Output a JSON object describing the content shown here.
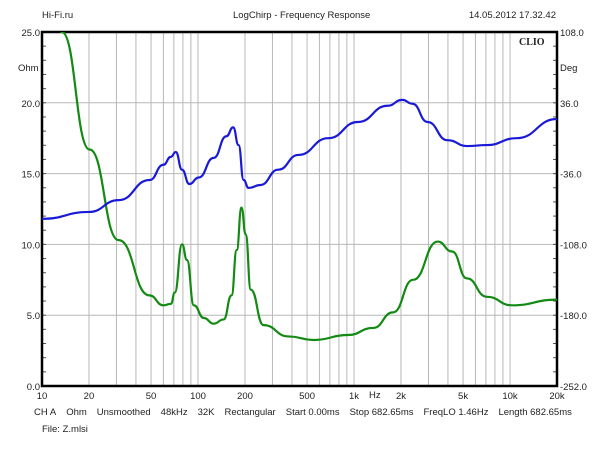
{
  "header": {
    "left": "Hi-Fi.ru",
    "center": "LogChirp - Frequency Response",
    "right": "14.05.2012 17.32.42"
  },
  "brand": "CLIO",
  "footer": {
    "info": [
      "CH A",
      "Ohm",
      "Unsmoothed",
      "48kHz",
      "32K",
      "Rectangular",
      "Start 0.00ms",
      "Stop 682.65ms",
      "FreqLO 1.46Hz",
      "Length 682.65ms"
    ],
    "file": "File: Z.mlsi"
  },
  "chart_data": {
    "type": "line",
    "title": "LogChirp - Frequency Response",
    "xlabel": "Hz",
    "ylabel": "Ohm",
    "y2label": "Deg",
    "xscale": "log",
    "xlim": [
      10,
      20000
    ],
    "ylim": [
      0,
      25
    ],
    "y2lim": [
      -252,
      108
    ],
    "grid": true,
    "xticks": [
      10,
      20,
      50,
      100,
      200,
      500,
      1000,
      2000,
      5000,
      10000,
      20000
    ],
    "xtick_labels": [
      "10",
      "20",
      "50",
      "100",
      "200",
      "500",
      "1k",
      "2k",
      "5k",
      "10k",
      "20k"
    ],
    "yticks": [
      0,
      5,
      10,
      15,
      20,
      25
    ],
    "ytick_labels": [
      "0.0",
      "5.0",
      "10.0",
      "15.0",
      "20.0",
      "25.0"
    ],
    "y2ticks": [
      -252,
      -180,
      -108,
      -36,
      36,
      108
    ],
    "y2tick_labels": [
      "-252.0",
      "-180.0",
      "-108.0",
      "-36.0",
      "36.0",
      "108.0"
    ],
    "series": [
      {
        "name": "Impedance",
        "axis": "left",
        "color": "#138a13",
        "x": [
          13.4,
          20.2,
          31,
          48.8,
          60,
          67,
          71,
          79,
          85,
          94,
          109,
          126,
          146,
          164,
          177,
          190,
          202,
          218,
          263,
          380,
          550,
          915,
          1325,
          1780,
          2390,
          3440,
          4250,
          5290,
          7100,
          10300,
          20000
        ],
        "y": [
          25,
          16.7,
          10.3,
          6.4,
          5.7,
          5.8,
          6.6,
          10.0,
          8.9,
          5.7,
          4.8,
          4.4,
          4.7,
          6.4,
          9.6,
          12.6,
          10.7,
          6.8,
          4.3,
          3.5,
          3.25,
          3.6,
          4.1,
          5.2,
          7.5,
          10.2,
          9.5,
          7.6,
          6.3,
          5.7,
          6.1
        ]
      },
      {
        "name": "Phase",
        "axis": "right",
        "color": "#1a1ad6",
        "x": [
          10,
          20,
          31,
          49,
          60,
          67,
          72,
          79,
          88,
          101,
          126,
          152,
          168,
          182,
          196,
          211,
          251,
          327,
          440,
          683,
          1060,
          1640,
          2040,
          2370,
          2960,
          3970,
          5300,
          7100,
          11000,
          20000
        ],
        "y": [
          -82,
          -75,
          -63,
          -42.5,
          -27,
          -19,
          -14,
          -32,
          -46.6,
          -40,
          -20,
          2,
          11,
          -7,
          -42.5,
          -50.6,
          -47.6,
          -32,
          -17,
          0,
          16.5,
          33,
          39,
          35,
          16.5,
          -2,
          -8,
          -7,
          0,
          19.5
        ]
      }
    ]
  }
}
